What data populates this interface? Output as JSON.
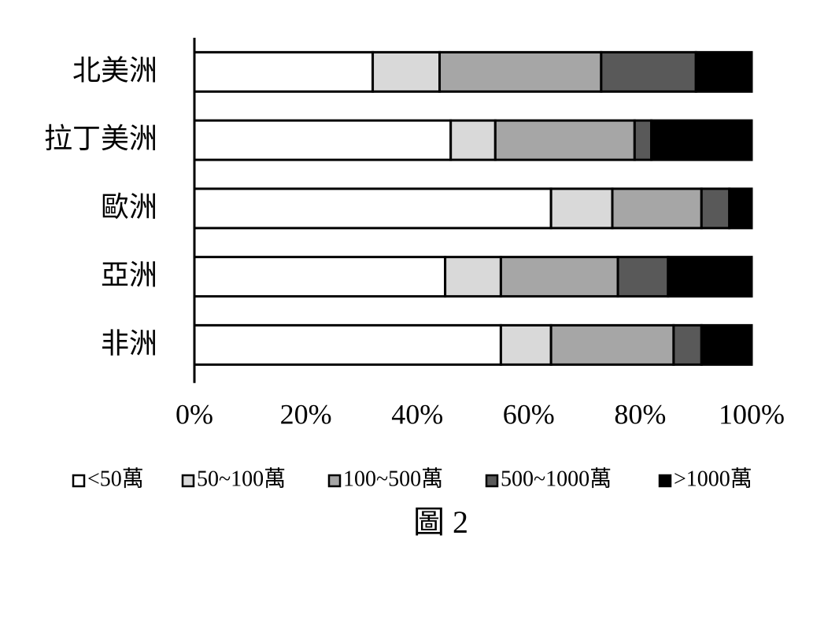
{
  "chart_data": {
    "type": "stacked_bar_horizontal",
    "categories": [
      "北美洲",
      "拉丁美洲",
      "歐洲",
      "亞洲",
      "非洲"
    ],
    "series": [
      {
        "name": "<50萬",
        "color": "#ffffff",
        "values": [
          32,
          46,
          64,
          45,
          55
        ]
      },
      {
        "name": "50~100萬",
        "color": "#d9d9d9",
        "values": [
          12,
          8,
          11,
          10,
          9
        ]
      },
      {
        "name": "100~500萬",
        "color": "#a6a6a6",
        "values": [
          29,
          25,
          16,
          21,
          22
        ]
      },
      {
        "name": "500~1000萬",
        "color": "#595959",
        "values": [
          17,
          3,
          5,
          9,
          5
        ]
      },
      {
        "name": ">1000萬",
        "color": "#000000",
        "values": [
          10,
          18,
          4,
          15,
          9
        ]
      }
    ],
    "xlim": [
      0,
      100
    ],
    "xticks": [
      {
        "value": 0,
        "label": "0%"
      },
      {
        "value": 20,
        "label": "20%"
      },
      {
        "value": 40,
        "label": "40%"
      },
      {
        "value": 60,
        "label": "60%"
      },
      {
        "value": 80,
        "label": "80%"
      },
      {
        "value": 100,
        "label": "100%"
      }
    ],
    "legend": "bottom",
    "caption": "圖 2"
  }
}
